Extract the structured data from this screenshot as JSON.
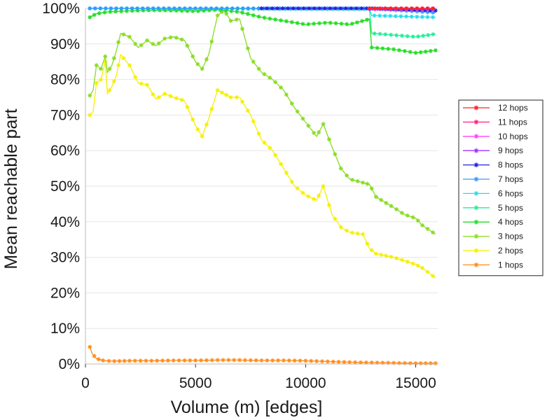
{
  "chart_data": {
    "type": "line",
    "xlabel": "Volume (m) [edges]",
    "ylabel": "Mean reachable part",
    "xlim": [
      0,
      16000
    ],
    "ylim": [
      0,
      100
    ],
    "xticks": [
      0,
      5000,
      10000,
      15000
    ],
    "yticks": [
      0,
      10,
      20,
      30,
      40,
      50,
      60,
      70,
      80,
      90,
      100
    ],
    "ytick_suffix": "%",
    "grid": "horizontal",
    "legend_position": "right",
    "series": [
      {
        "name": "12 hops",
        "color": "#ff2020",
        "x": [
          12900,
          15900
        ],
        "y": [
          100,
          100
        ]
      },
      {
        "name": "11 hops",
        "color": "#ff2080",
        "x": [
          12900,
          15900
        ],
        "y": [
          100,
          100
        ]
      },
      {
        "name": "10 hops",
        "color": "#ff40ff",
        "x": [
          12900,
          15900
        ],
        "y": [
          99.9,
          99.9
        ]
      },
      {
        "name": "9 hops",
        "color": "#9933ff",
        "x": [
          12900,
          15900
        ],
        "y": [
          99.8,
          99.8
        ]
      },
      {
        "name": "8 hops",
        "color": "#2020e0",
        "x": [
          8000,
          12900,
          15900
        ],
        "y": [
          100,
          100,
          99.4
        ]
      },
      {
        "name": "7 hops",
        "color": "#3399ff",
        "x": [
          200,
          12900,
          15900
        ],
        "y": [
          100,
          100,
          98.8
        ]
      },
      {
        "name": "6 hops",
        "color": "#22ddee",
        "x": [
          200,
          12900,
          13000,
          15900
        ],
        "y": [
          100,
          100,
          98,
          97.5
        ]
      },
      {
        "name": "5 hops",
        "color": "#22ee99",
        "x": [
          200,
          12900,
          13000,
          14000,
          15000,
          15900
        ],
        "y": [
          100,
          99.8,
          93,
          92.5,
          92,
          92.8
        ]
      },
      {
        "name": "4 hops",
        "color": "#22dd22",
        "x": [
          200,
          500,
          1000,
          2000,
          3000,
          4000,
          5000,
          6000,
          7000,
          8000,
          9000,
          10000,
          11000,
          12000,
          12900,
          13000,
          14000,
          15000,
          15900
        ],
        "y": [
          97.5,
          98.5,
          99,
          99.3,
          99.5,
          99.4,
          99.2,
          99.6,
          99,
          97.5,
          96.5,
          95.5,
          96,
          95.5,
          97,
          89,
          88.5,
          87.5,
          88.2
        ]
      },
      {
        "name": "3 hops",
        "color": "#88dd22",
        "x": [
          200,
          350,
          500,
          700,
          900,
          1000,
          1200,
          1400,
          1600,
          2000,
          2400,
          2800,
          3200,
          3600,
          4000,
          4500,
          5000,
          5300,
          5600,
          6000,
          6300,
          6600,
          7000,
          7500,
          8000,
          8500,
          9000,
          9500,
          10000,
          10500,
          10800,
          11200,
          11600,
          12000,
          12600,
          12900,
          13200,
          14000,
          14500,
          15000,
          15300,
          15900
        ],
        "y": [
          75.5,
          77,
          84,
          83,
          86.5,
          82,
          84,
          88,
          93,
          92,
          89,
          91,
          89.5,
          91.5,
          92,
          91,
          85,
          83,
          87,
          98,
          99.5,
          96.5,
          97,
          86,
          82,
          80,
          77,
          72,
          68,
          64,
          67.5,
          61,
          55,
          52,
          51,
          50.5,
          47,
          44,
          42,
          41,
          39,
          36.5
        ]
      },
      {
        "name": "2 hops",
        "color": "#f5f000",
        "x": [
          200,
          350,
          500,
          700,
          900,
          1000,
          1200,
          1400,
          1600,
          2000,
          2400,
          2800,
          3200,
          3600,
          4000,
          4500,
          5000,
          5300,
          5600,
          6000,
          6300,
          6600,
          7000,
          7500,
          8000,
          8500,
          9000,
          9500,
          10000,
          10500,
          10800,
          11200,
          11600,
          12000,
          12600,
          12900,
          13200,
          14000,
          14500,
          15000,
          15300,
          15900
        ],
        "y": [
          70,
          71,
          79,
          80,
          85,
          76,
          78,
          81,
          87,
          84,
          79,
          78.5,
          74.5,
          76,
          75,
          74,
          67,
          64,
          69,
          77,
          76,
          75,
          75,
          70,
          63,
          60,
          55,
          50,
          47.5,
          46,
          50,
          42,
          38.5,
          37,
          36.5,
          32.5,
          31,
          30,
          29,
          28,
          27,
          24.2
        ]
      },
      {
        "name": "1 hops",
        "color": "#ff8c1a",
        "x": [
          200,
          300,
          500,
          800,
          1200,
          2000,
          3000,
          4000,
          5000,
          6000,
          7000,
          8000,
          9000,
          10000,
          11000,
          12000,
          13000,
          14000,
          15000,
          15900
        ],
        "y": [
          4.8,
          3,
          1.5,
          1,
          0.8,
          0.9,
          0.9,
          1,
          1,
          1.1,
          1.1,
          1,
          1,
          0.9,
          0.7,
          0.5,
          0.4,
          0.3,
          0.2,
          0.2
        ]
      }
    ]
  }
}
